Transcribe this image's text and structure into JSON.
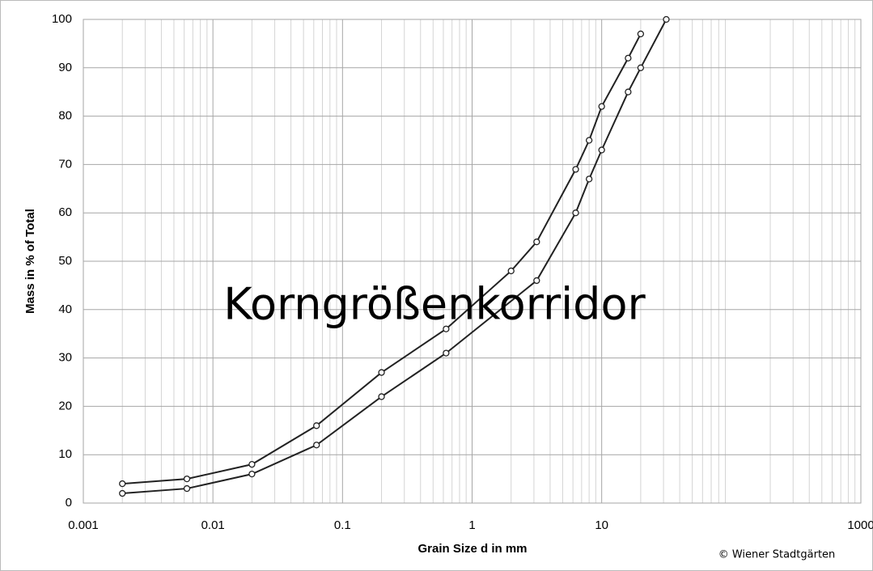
{
  "chart_data": {
    "type": "line",
    "annotation": "Korngrößenkorridor",
    "x_label": "Grain Size d in mm",
    "y_label": "Mass in % of Total",
    "credit": "© Wiener Stadtgärten",
    "xlog": true,
    "grid": true,
    "minor_grid": true,
    "xlim": [
      0.001,
      1000
    ],
    "xticks": [
      0.001,
      0.01,
      0.1,
      1,
      10,
      1000
    ],
    "ylim": [
      0,
      100
    ],
    "yticks": [
      0,
      10,
      20,
      30,
      40,
      50,
      60,
      70,
      80,
      90,
      100
    ],
    "series": [
      {
        "color": "#222222",
        "x": [
          0.002,
          0.0063,
          0.02,
          0.063,
          0.2,
          0.63,
          2,
          3.15,
          6.3,
          8,
          10,
          16,
          20
        ],
        "values": [
          4,
          5,
          8,
          16,
          27,
          36,
          48,
          54,
          69,
          75,
          82,
          92,
          97
        ]
      },
      {
        "color": "#222222",
        "x": [
          0.002,
          0.0063,
          0.02,
          0.063,
          0.2,
          0.63,
          3.15,
          6.3,
          8,
          10,
          16,
          20,
          31.5
        ],
        "values": [
          2,
          3,
          6,
          12,
          22,
          31,
          46,
          60,
          67,
          73,
          85,
          90,
          100
        ]
      }
    ]
  }
}
